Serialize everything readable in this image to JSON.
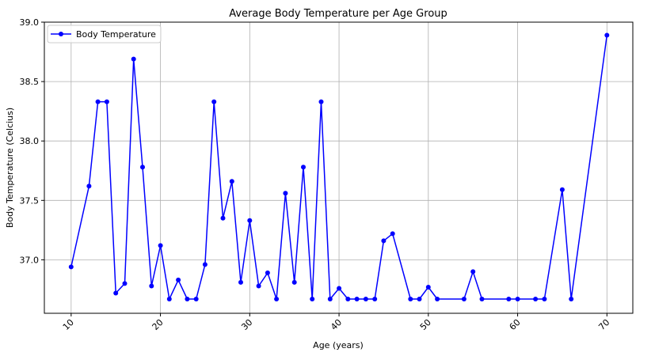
{
  "chart_data": {
    "type": "line",
    "title": "Average Body Temperature per Age Group",
    "xlabel": "Age (years)",
    "ylabel": "Body Temperature (Celcius)",
    "xlim": [
      7.0,
      72.9
    ],
    "ylim": [
      36.55,
      39.0
    ],
    "x_ticks": [
      10,
      20,
      30,
      40,
      50,
      60,
      70
    ],
    "x_tick_labels": [
      "10",
      "20",
      "30",
      "40",
      "50",
      "60",
      "70"
    ],
    "y_ticks": [
      37.0,
      37.5,
      38.0,
      38.5,
      39.0
    ],
    "y_tick_labels": [
      "37.0",
      "37.5",
      "38.0",
      "38.5",
      "39.0"
    ],
    "grid": true,
    "legend_position": "top-left",
    "series": [
      {
        "name": "Body Temperature",
        "color": "#0000ff",
        "marker": "circle",
        "x": [
          10,
          12,
          13,
          14,
          15,
          16,
          17,
          18,
          19,
          20,
          21,
          22,
          23,
          24,
          25,
          26,
          27,
          28,
          29,
          30,
          31,
          32,
          33,
          34,
          35,
          36,
          37,
          38,
          39,
          40,
          41,
          42,
          43,
          44,
          45,
          46,
          48,
          49,
          50,
          51,
          54,
          55,
          56,
          59,
          60,
          62,
          63,
          65,
          66,
          70
        ],
        "y": [
          36.94,
          37.62,
          38.33,
          38.33,
          36.72,
          36.8,
          38.69,
          37.78,
          36.78,
          37.12,
          36.67,
          36.83,
          36.67,
          36.67,
          36.96,
          38.33,
          37.35,
          37.66,
          36.81,
          37.33,
          36.78,
          36.89,
          36.67,
          37.56,
          36.81,
          37.78,
          36.67,
          38.33,
          36.67,
          36.76,
          36.67,
          36.67,
          36.67,
          36.67,
          37.16,
          37.22,
          36.67,
          36.67,
          36.77,
          36.67,
          36.67,
          36.9,
          36.67,
          36.67,
          36.67,
          36.67,
          36.67,
          37.59,
          36.67,
          38.89
        ]
      }
    ]
  }
}
